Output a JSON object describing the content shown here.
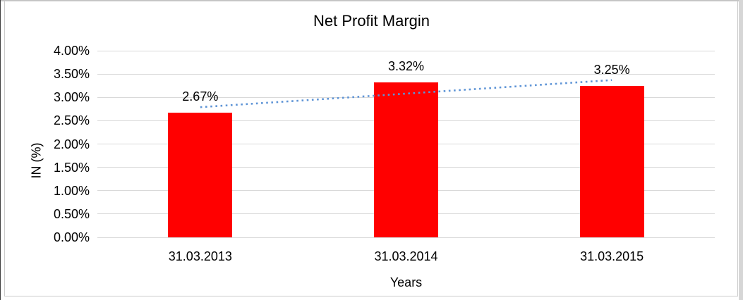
{
  "chart_data": {
    "type": "bar",
    "title": "Net Profit Margin",
    "categories": [
      "31.03.2013",
      "31.03.2014",
      "31.03.2015"
    ],
    "values": [
      2.67,
      3.32,
      3.25
    ],
    "data_labels": [
      "2.67%",
      "3.32%",
      "3.25%"
    ],
    "xlabel": "Years",
    "ylabel": "IN (%)",
    "ylim": [
      0,
      4
    ],
    "ytick_step": 0.5,
    "yticks": [
      "4.00%",
      "3.50%",
      "3.00%",
      "2.50%",
      "2.00%",
      "1.50%",
      "1.00%",
      "0.50%",
      "0.00%"
    ],
    "bar_color": "#ff0000",
    "gridline_color": "#d9d9d9",
    "text_color": "#000000",
    "grid": true,
    "legend": "none",
    "trendline": {
      "type": "linear",
      "style": "dotted",
      "color": "#5e94d6",
      "start_value": 2.79,
      "end_value": 3.37
    }
  }
}
